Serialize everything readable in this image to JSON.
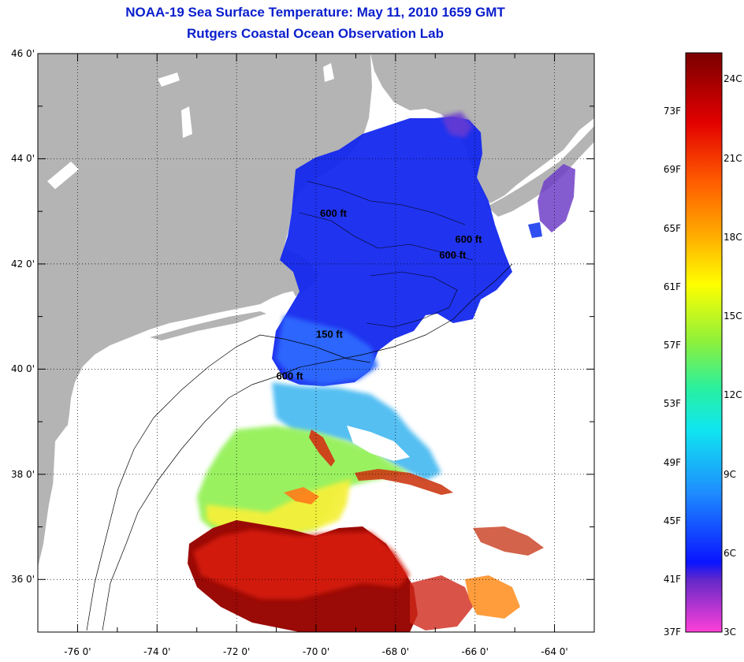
{
  "title": "NOAA-19 Sea Surface Temperature:  May 11, 2010 1659 GMT",
  "subtitle": "Rutgers Coastal Ocean Observation Lab",
  "map": {
    "lon_range": [
      -77,
      -63
    ],
    "lat_range": [
      35,
      46
    ],
    "x_ticks": [
      "-76 0'",
      "-74 0'",
      "-72 0'",
      "-70 0'",
      "-68 0'",
      "-66 0'",
      "-64 0'"
    ],
    "x_tick_values": [
      -76,
      -74,
      -72,
      -70,
      -68,
      -66,
      -64
    ],
    "y_ticks": [
      "46 0'",
      "44 0'",
      "42 0'",
      "40 0'",
      "38 0'",
      "36 0'"
    ],
    "y_tick_values": [
      46,
      44,
      42,
      40,
      38,
      36
    ],
    "grid": "dotted",
    "land_color": "#b4b4b4",
    "water_nodata_color": "#ffffff",
    "contour_labels": [
      {
        "text": "600 ft",
        "lon": -69.9,
        "lat": 42.9
      },
      {
        "text": "600 ft",
        "lon": -66.5,
        "lat": 42.4
      },
      {
        "text": "600 ft",
        "lon": -66.9,
        "lat": 42.1
      },
      {
        "text": "150 ft",
        "lon": -70.0,
        "lat": 40.6
      },
      {
        "text": "600 ft",
        "lon": -71.0,
        "lat": 39.8
      }
    ]
  },
  "colorbar": {
    "range_c": [
      3,
      25
    ],
    "fahrenheit_labels": [
      "73F",
      "69F",
      "65F",
      "61F",
      "57F",
      "53F",
      "49F",
      "45F",
      "41F",
      "37F"
    ],
    "fahrenheit_values": [
      73,
      69,
      65,
      61,
      57,
      53,
      49,
      45,
      41,
      37
    ],
    "celsius_labels": [
      "24C",
      "21C",
      "18C",
      "15C",
      "12C",
      "9C",
      "6C",
      "3C"
    ],
    "celsius_values": [
      24,
      21,
      18,
      15,
      12,
      9,
      6,
      3
    ]
  }
}
